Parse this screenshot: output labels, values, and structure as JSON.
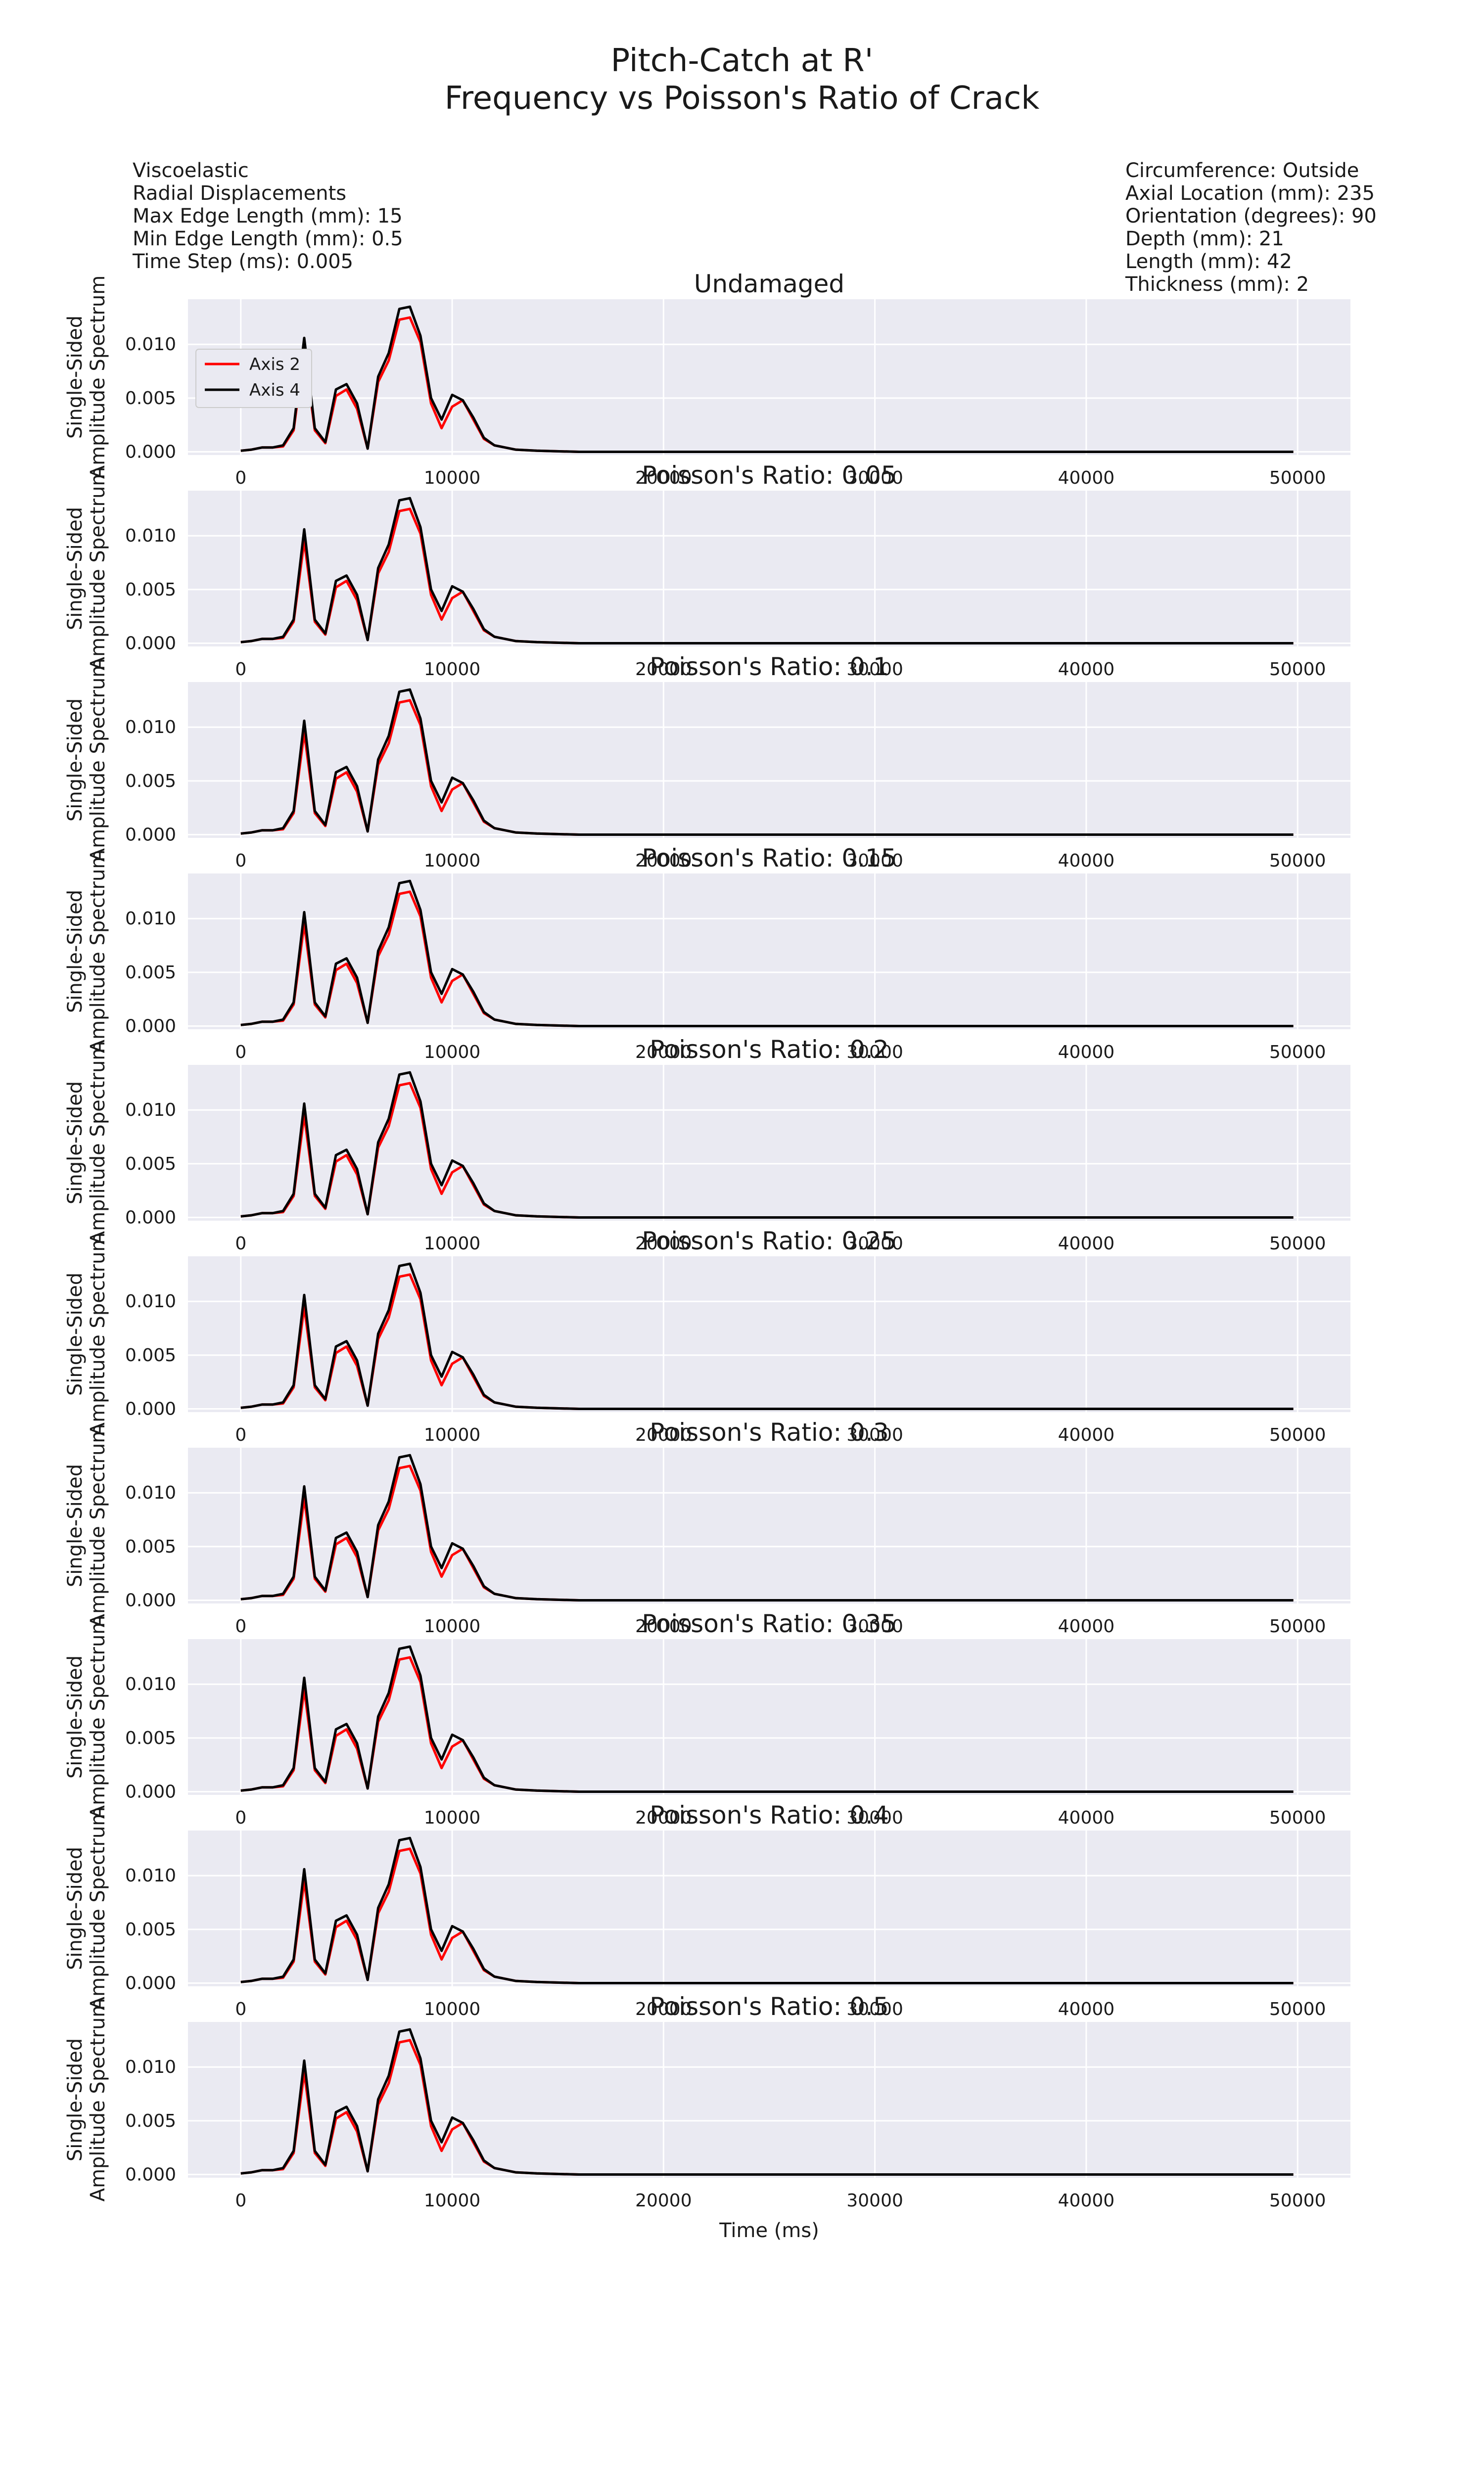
{
  "figure": {
    "title_line1": "Pitch-Catch at R'",
    "title_line2": "Frequency vs Poisson's Ratio of Crack",
    "left_info": [
      "Viscoelastic",
      "Radial Displacements",
      "Max Edge Length (mm): 15",
      "Min Edge Length (mm): 0.5",
      "Time Step (ms): 0.005"
    ],
    "right_info": [
      "Circumference: Outside",
      "Axial Location (mm): 235",
      "Orientation (degrees): 90",
      "Depth (mm): 21",
      "Length (mm): 42",
      "Thickness (mm): 2"
    ]
  },
  "colors": {
    "plot_background": "#eaeaf2",
    "grid": "#ffffff",
    "axis2": "#ff0000",
    "axis4": "#000000"
  },
  "chart_data": {
    "type": "line",
    "xlabel": "Time (ms)",
    "ylabel_line1": "Single-Sided",
    "ylabel_line2": "Amplitude Spectrum",
    "xlim": [
      -2500,
      52500
    ],
    "ylim": [
      -0.0003,
      0.0142
    ],
    "xticks": [
      0,
      10000,
      20000,
      30000,
      40000,
      50000
    ],
    "yticks": [
      0.0,
      0.005,
      0.01
    ],
    "ytick_labels": [
      "0.000",
      "0.005",
      "0.010"
    ],
    "grid": true,
    "legend": {
      "location": "upper-left",
      "panel": 0,
      "entries": [
        "Axis 2",
        "Axis 4"
      ]
    },
    "panel_titles": [
      "Undamaged",
      "Poisson's Ratio: 0.05",
      "Poisson's Ratio: 0.1",
      "Poisson's Ratio: 0.15",
      "Poisson's Ratio: 0.2",
      "Poisson's Ratio: 0.25",
      "Poisson's Ratio: 0.3",
      "Poisson's Ratio: 0.35",
      "Poisson's Ratio: 0.4",
      "Poisson's Ratio: 0.5"
    ],
    "x": [
      0,
      500,
      1000,
      1500,
      2000,
      2500,
      3000,
      3500,
      4000,
      4500,
      5000,
      5500,
      6000,
      6500,
      7000,
      7500,
      8000,
      8500,
      9000,
      9500,
      10000,
      10500,
      11000,
      11500,
      12000,
      13000,
      14000,
      16000,
      20000,
      30000,
      40000,
      49800
    ],
    "series": [
      {
        "name": "Axis 2",
        "color": "#ff0000",
        "values": [
          0.0001,
          0.0002,
          0.0004,
          0.0004,
          0.0005,
          0.002,
          0.0095,
          0.002,
          0.0008,
          0.0052,
          0.0058,
          0.004,
          0.0003,
          0.0065,
          0.0085,
          0.0123,
          0.0125,
          0.0102,
          0.0045,
          0.0022,
          0.0042,
          0.0048,
          0.003,
          0.0012,
          0.0006,
          0.0002,
          0.0001,
          0.0,
          0.0,
          0.0,
          0.0,
          0.0
        ]
      },
      {
        "name": "Axis 4",
        "color": "#000000",
        "values": [
          0.0001,
          0.0002,
          0.0004,
          0.0004,
          0.0006,
          0.0022,
          0.0106,
          0.0022,
          0.0009,
          0.0058,
          0.0063,
          0.0045,
          0.0003,
          0.007,
          0.0092,
          0.0133,
          0.0135,
          0.0108,
          0.005,
          0.003,
          0.0053,
          0.0048,
          0.0032,
          0.0013,
          0.0006,
          0.0002,
          0.0001,
          0.0,
          0.0,
          0.0,
          0.0,
          0.0
        ]
      }
    ]
  }
}
